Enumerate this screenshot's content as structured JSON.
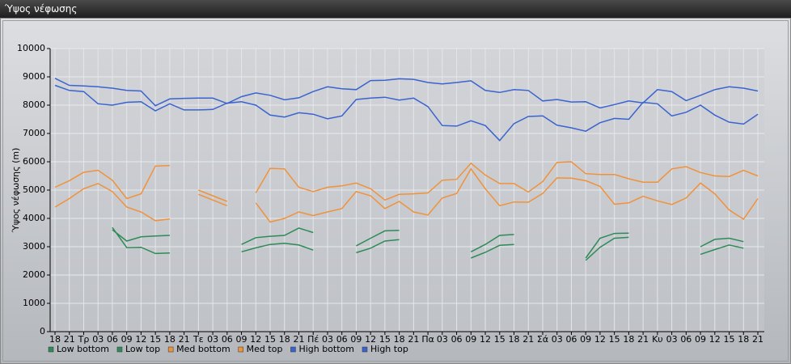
{
  "window_title": "Ύψος νέφωσης",
  "chart_data": {
    "type": "line",
    "y_label": "Ύψος νέφωσης (m)",
    "categories": [
      "18",
      "21",
      "Τρ",
      "03",
      "06",
      "09",
      "12",
      "15",
      "18",
      "21",
      "Τε",
      "03",
      "06",
      "09",
      "12",
      "15",
      "18",
      "21",
      "Πέ",
      "03",
      "06",
      "09",
      "12",
      "15",
      "18",
      "21",
      "Πα",
      "03",
      "06",
      "09",
      "12",
      "15",
      "18",
      "21",
      "Σά",
      "03",
      "06",
      "09",
      "12",
      "15",
      "18",
      "21",
      "Κυ",
      "03",
      "06",
      "09",
      "12",
      "15",
      "18",
      "21"
    ],
    "ylim": [
      0,
      10000
    ],
    "yticks": [
      0,
      1000,
      2000,
      3000,
      4000,
      5000,
      6000,
      7000,
      8000,
      9000,
      10000
    ],
    "grid": true,
    "legend": "bottom-left",
    "series": [
      {
        "name": "Low bottom",
        "color": "#2e8b57",
        "values": [
          null,
          null,
          null,
          null,
          3680,
          2970,
          2980,
          2760,
          2780,
          null,
          null,
          null,
          null,
          2820,
          2960,
          3080,
          3120,
          3060,
          2880,
          null,
          null,
          2790,
          2950,
          3200,
          3250,
          null,
          null,
          null,
          null,
          2600,
          2800,
          3050,
          3080,
          null,
          null,
          null,
          null,
          2520,
          2980,
          3300,
          3330,
          null,
          null,
          null,
          null,
          2730,
          2900,
          3060,
          2950,
          null
        ]
      },
      {
        "name": "Low top",
        "color": "#2e8b57",
        "values": [
          null,
          null,
          null,
          null,
          3600,
          3200,
          3350,
          3380,
          3400,
          null,
          null,
          null,
          null,
          3080,
          3320,
          3370,
          3400,
          3660,
          3500,
          null,
          null,
          3030,
          3300,
          3560,
          3580,
          null,
          null,
          null,
          null,
          2820,
          3080,
          3400,
          3430,
          null,
          null,
          null,
          null,
          2600,
          3300,
          3470,
          3480,
          null,
          null,
          null,
          null,
          3000,
          3260,
          3300,
          3180,
          null
        ]
      },
      {
        "name": "Med bottom",
        "color": "#f0923a",
        "values": [
          4400,
          4700,
          5050,
          5230,
          4950,
          4400,
          4230,
          3920,
          3980,
          null,
          4850,
          4650,
          4450,
          null,
          4550,
          3870,
          4000,
          4230,
          4100,
          4230,
          4350,
          4950,
          4800,
          4350,
          4600,
          4230,
          4120,
          4720,
          4880,
          5750,
          5050,
          4450,
          4580,
          4570,
          4880,
          5430,
          5420,
          5330,
          5130,
          4500,
          4550,
          4780,
          4620,
          4490,
          4720,
          5250,
          4870,
          4300,
          3970,
          4700
        ]
      },
      {
        "name": "Med top",
        "color": "#f0923a",
        "values": [
          5100,
          5330,
          5630,
          5700,
          5350,
          4700,
          4870,
          5850,
          5870,
          null,
          5000,
          4800,
          4600,
          null,
          4900,
          5770,
          5750,
          5100,
          4950,
          5100,
          5150,
          5250,
          5050,
          4650,
          4850,
          4870,
          4900,
          5350,
          5380,
          5950,
          5530,
          5230,
          5230,
          4930,
          5300,
          5980,
          6000,
          5580,
          5550,
          5550,
          5400,
          5280,
          5280,
          5750,
          5830,
          5620,
          5500,
          5480,
          5700,
          5500
        ]
      },
      {
        "name": "High bottom",
        "color": "#3a63d0",
        "values": [
          8700,
          8520,
          8480,
          8050,
          8000,
          8100,
          8120,
          7800,
          8050,
          7830,
          7830,
          7850,
          8070,
          8120,
          8000,
          7650,
          7580,
          7730,
          7680,
          7520,
          7620,
          8200,
          8250,
          8280,
          8180,
          8250,
          7950,
          7280,
          7260,
          7450,
          7280,
          6750,
          7350,
          7600,
          7620,
          7290,
          7200,
          7080,
          7380,
          7530,
          7500,
          8100,
          8050,
          7620,
          7750,
          8000,
          7650,
          7400,
          7330,
          7680
        ]
      },
      {
        "name": "High top",
        "color": "#3a63d0",
        "values": [
          8950,
          8700,
          8680,
          8650,
          8600,
          8520,
          8500,
          7980,
          8220,
          8240,
          8250,
          8250,
          8060,
          8300,
          8430,
          8350,
          8190,
          8260,
          8480,
          8650,
          8580,
          8550,
          8870,
          8880,
          8930,
          8910,
          8800,
          8750,
          8800,
          8860,
          8520,
          8450,
          8550,
          8520,
          8150,
          8200,
          8110,
          8120,
          7900,
          8020,
          8150,
          8080,
          8550,
          8480,
          8160,
          8350,
          8550,
          8650,
          8600,
          8500
        ]
      }
    ]
  }
}
